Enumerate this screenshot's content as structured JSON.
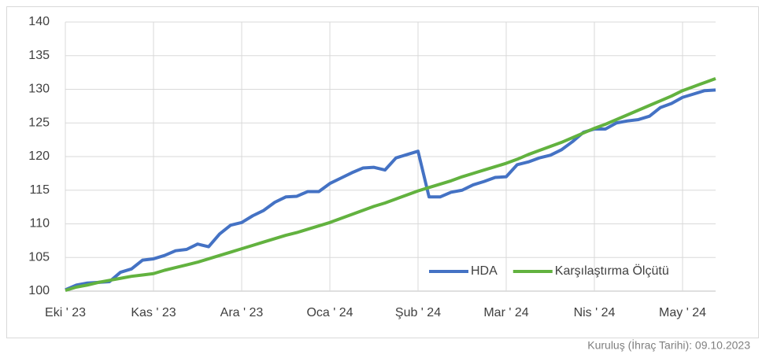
{
  "chart_data": {
    "type": "line",
    "footnote": "Kuruluş (İhraç Tarihi): 09.10.2023",
    "x": [
      0,
      1,
      2,
      3,
      4,
      5,
      6,
      7,
      8,
      9,
      10,
      11,
      12,
      13,
      14,
      15,
      16,
      17,
      18,
      19,
      20,
      21,
      22,
      23,
      24,
      25,
      26,
      27,
      28,
      29,
      30,
      31,
      32,
      33,
      34,
      35,
      36,
      37,
      38,
      39,
      40,
      41,
      42,
      43,
      44,
      45,
      46,
      47,
      48,
      49,
      50,
      51,
      52,
      53,
      54,
      55,
      56,
      57,
      58,
      59
    ],
    "series": [
      {
        "name": "HDA",
        "color": "#4472c4",
        "values": [
          100.2,
          100.9,
          101.2,
          101.3,
          101.4,
          102.8,
          103.3,
          104.6,
          104.8,
          105.3,
          106.0,
          106.2,
          107.0,
          106.6,
          108.5,
          109.8,
          110.2,
          111.2,
          112.0,
          113.2,
          114.0,
          114.1,
          114.8,
          114.8,
          116.0,
          116.8,
          117.6,
          118.3,
          118.4,
          118.0,
          119.8,
          120.3,
          120.8,
          114.0,
          114.0,
          114.7,
          115.0,
          115.8,
          116.3,
          116.9,
          117.0,
          118.8,
          119.2,
          119.8,
          120.2,
          121.0,
          122.2,
          123.6,
          124.1,
          124.1,
          125.0,
          125.3,
          125.5,
          126.0,
          127.3,
          127.9,
          128.8,
          129.3,
          129.8,
          129.9
        ]
      },
      {
        "name": "Karşılaştırma Ölçütü",
        "color": "#62b23f",
        "values": [
          100.1,
          100.6,
          100.9,
          101.3,
          101.6,
          101.9,
          102.2,
          102.4,
          102.6,
          103.1,
          103.5,
          103.9,
          104.3,
          104.8,
          105.3,
          105.8,
          106.3,
          106.8,
          107.3,
          107.8,
          108.3,
          108.7,
          109.2,
          109.7,
          110.2,
          110.8,
          111.4,
          112.0,
          112.6,
          113.1,
          113.7,
          114.3,
          114.9,
          115.4,
          115.9,
          116.4,
          117.0,
          117.5,
          118.0,
          118.5,
          119.0,
          119.6,
          120.3,
          120.9,
          121.5,
          122.1,
          122.8,
          123.5,
          124.2,
          124.8,
          125.5,
          126.2,
          126.9,
          127.6,
          128.3,
          129.0,
          129.8,
          130.4,
          131.0,
          131.6
        ]
      }
    ],
    "xlim": [
      0,
      59
    ],
    "xticks": [
      {
        "value": 0,
        "label": "Eki ' 23"
      },
      {
        "value": 8,
        "label": "Kas ' 23"
      },
      {
        "value": 16,
        "label": "Ara ' 23"
      },
      {
        "value": 24,
        "label": "Oca ' 24"
      },
      {
        "value": 32,
        "label": "Şub ' 24"
      },
      {
        "value": 40,
        "label": "Mar ' 24"
      },
      {
        "value": 48,
        "label": "Nis ' 24"
      },
      {
        "value": 56,
        "label": "May ' 24"
      }
    ],
    "ylim": [
      100,
      140
    ],
    "yticks": [
      100,
      105,
      110,
      115,
      120,
      125,
      130,
      135,
      140
    ],
    "grid": true,
    "legend": "lower right"
  }
}
